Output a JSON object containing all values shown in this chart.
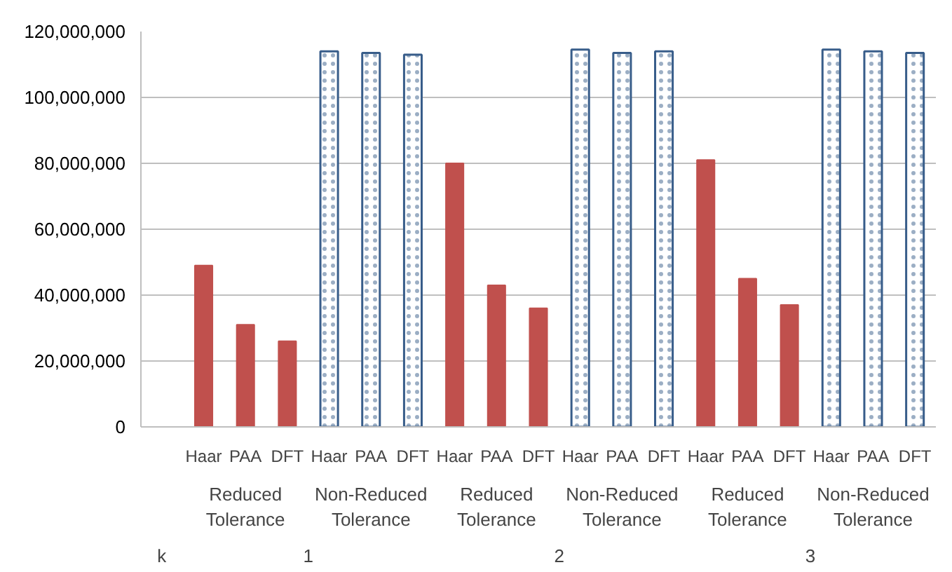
{
  "chart_data": {
    "type": "bar",
    "categories": [
      null,
      "Haar",
      "PAA",
      "DFT",
      "Haar",
      "PAA",
      "DFT",
      "Haar",
      "PAA",
      "DFT",
      "Haar",
      "PAA",
      "DFT",
      "Haar",
      "PAA",
      "DFT",
      "Haar",
      "PAA",
      "DFT"
    ],
    "series": [
      {
        "color": "#c0504d",
        "values": [
          null,
          49000000,
          31000000,
          26000000,
          null,
          null,
          null,
          80000000,
          43000000,
          36000000,
          null,
          null,
          null,
          81000000,
          45000000,
          37000000,
          null,
          null,
          null
        ]
      },
      {
        "color": "#385d8a",
        "values": [
          null,
          null,
          null,
          null,
          114000000,
          113500000,
          113000000,
          null,
          null,
          null,
          114500000,
          113500000,
          114000000,
          null,
          null,
          null,
          114500000,
          114000000,
          113500000
        ]
      }
    ],
    "ylim": [
      0,
      120000000
    ],
    "yticks": [
      {
        "value": 0,
        "label": "0"
      },
      {
        "value": 20000000,
        "label": "20,000,000"
      },
      {
        "value": 40000000,
        "label": "40,000,000"
      },
      {
        "value": 60000000,
        "label": "60,000,000"
      },
      {
        "value": 80000000,
        "label": "80,000,000"
      },
      {
        "value": 100000000,
        "label": "100,000,000"
      },
      {
        "value": 120000000,
        "label": "120,000,000"
      }
    ],
    "grid": "y",
    "annotations": [
      "Reduced Tolerance",
      "Non-Reduced Tolerance",
      "Reduced Tolerance",
      "Non-Reduced Tolerance",
      "Reduced Tolerance",
      "Non-Reduced Tolerance",
      "k",
      "1",
      "2",
      "3"
    ]
  }
}
